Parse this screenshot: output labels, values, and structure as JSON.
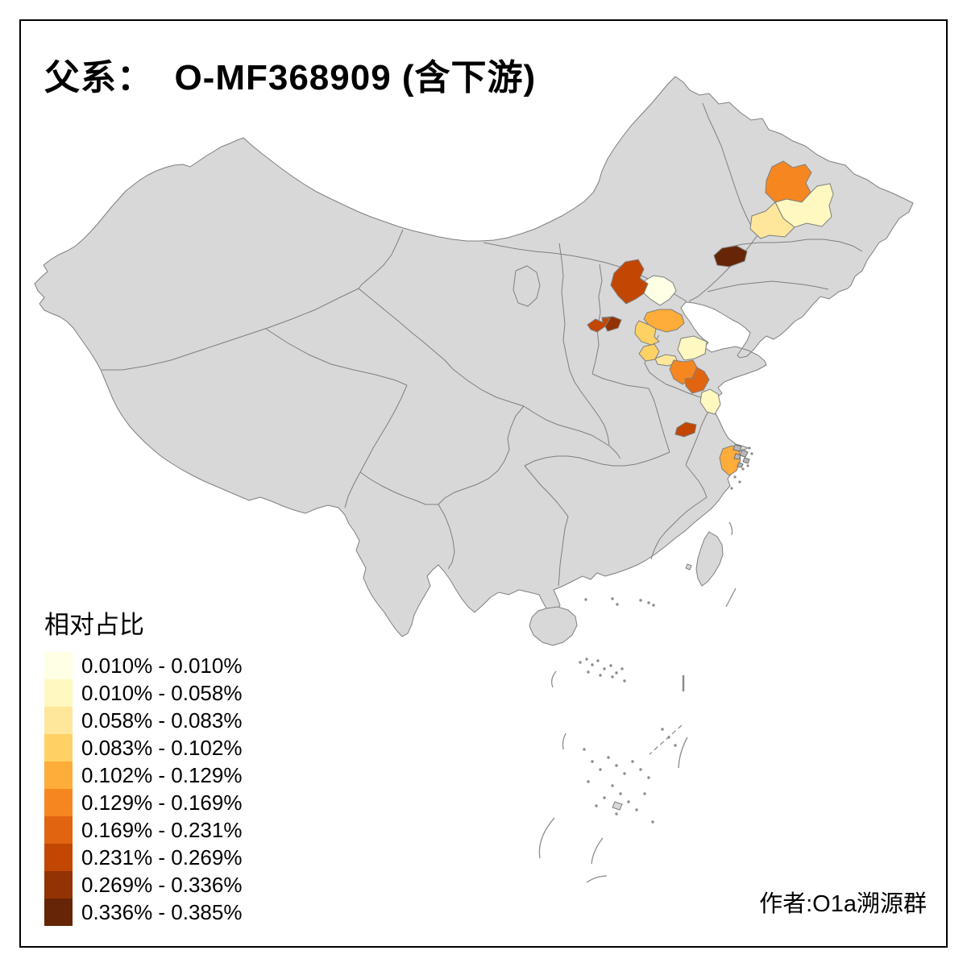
{
  "title": "父系：  O-MF368909 (含下游)",
  "attribution": "作者:O1a溯源群",
  "legend": {
    "title": "相对占比",
    "classes": [
      {
        "label": "0.010% - 0.010%",
        "color": "#FFFFE5"
      },
      {
        "label": "0.010% - 0.058%",
        "color": "#FFF8C0"
      },
      {
        "label": "0.058% - 0.083%",
        "color": "#FEE79B"
      },
      {
        "label": "0.083% - 0.102%",
        "color": "#FED165"
      },
      {
        "label": "0.102% - 0.129%",
        "color": "#FEAC3A"
      },
      {
        "label": "0.129% - 0.169%",
        "color": "#F68720"
      },
      {
        "label": "0.169% - 0.231%",
        "color": "#E16410"
      },
      {
        "label": "0.231% - 0.269%",
        "color": "#C14702"
      },
      {
        "label": "0.269% - 0.336%",
        "color": "#933203"
      },
      {
        "label": "0.336% - 0.385%",
        "color": "#662506"
      }
    ]
  },
  "map": {
    "base_fill": "#D8D8D8",
    "border_color": "#7F7F7F",
    "sea_color": "#FFFFFF",
    "frame_color": "#000000",
    "regions": [
      {
        "id": "northeast-1",
        "class_index": 6
      },
      {
        "id": "northeast-2",
        "class_index": 2
      },
      {
        "id": "northeast-3",
        "class_index": 3
      },
      {
        "id": "northeast-4",
        "class_index": 10
      },
      {
        "id": "north-1",
        "class_index": 8
      },
      {
        "id": "north-2",
        "class_index": 1
      },
      {
        "id": "north-3",
        "class_index": 8
      },
      {
        "id": "north-4",
        "class_index": 9
      },
      {
        "id": "east-1",
        "class_index": 5
      },
      {
        "id": "east-2",
        "class_index": 4
      },
      {
        "id": "east-3",
        "class_index": 4
      },
      {
        "id": "east-4",
        "class_index": 3
      },
      {
        "id": "east-5",
        "class_index": 2
      },
      {
        "id": "east-6",
        "class_index": 6
      },
      {
        "id": "east-7",
        "class_index": 7
      },
      {
        "id": "east-8",
        "class_index": 2
      },
      {
        "id": "east-9",
        "class_index": 8
      },
      {
        "id": "east-10",
        "class_index": 5
      }
    ]
  },
  "chart_data": {
    "type": "heatmap",
    "subtype": "choropleth-china-prefectures",
    "title": "父系：  O-MF368909 (含下游)",
    "legend_title": "相对占比",
    "unit": "%",
    "legend_position": "bottom-left",
    "bins": [
      {
        "min": 0.01,
        "max": 0.01,
        "label": "0.010% - 0.010%",
        "color": "#FFFFE5"
      },
      {
        "min": 0.01,
        "max": 0.058,
        "label": "0.010% - 0.058%",
        "color": "#FFF8C0"
      },
      {
        "min": 0.058,
        "max": 0.083,
        "label": "0.058% - 0.083%",
        "color": "#FEE79B"
      },
      {
        "min": 0.083,
        "max": 0.102,
        "label": "0.083% - 0.102%",
        "color": "#FED165"
      },
      {
        "min": 0.102,
        "max": 0.129,
        "label": "0.102% - 0.129%",
        "color": "#FEAC3A"
      },
      {
        "min": 0.129,
        "max": 0.169,
        "label": "0.129% - 0.169%",
        "color": "#F68720"
      },
      {
        "min": 0.169,
        "max": 0.231,
        "label": "0.169% - 0.231%",
        "color": "#E16410"
      },
      {
        "min": 0.231,
        "max": 0.269,
        "label": "0.231% - 0.269%",
        "color": "#C14702"
      },
      {
        "min": 0.269,
        "max": 0.336,
        "label": "0.269% - 0.336%",
        "color": "#933203"
      },
      {
        "min": 0.336,
        "max": 0.385,
        "label": "0.336% - 0.385%",
        "color": "#662506"
      }
    ],
    "highlighted_regions": [
      {
        "id": "northeast-1",
        "approx_location": "Heilongjiang central",
        "bin_index": 6
      },
      {
        "id": "northeast-2",
        "approx_location": "Heilongjiang southeast",
        "bin_index": 2
      },
      {
        "id": "northeast-3",
        "approx_location": "Jilin north",
        "bin_index": 3
      },
      {
        "id": "northeast-4",
        "approx_location": "Jilin southwest",
        "bin_index": 10
      },
      {
        "id": "north-1",
        "approx_location": "Hebei north",
        "bin_index": 8
      },
      {
        "id": "north-2",
        "approx_location": "Beijing area",
        "bin_index": 1
      },
      {
        "id": "north-3",
        "approx_location": "Shanxi-Hebei border west",
        "bin_index": 8
      },
      {
        "id": "north-4",
        "approx_location": "Shanxi-Hebei border east",
        "bin_index": 9
      },
      {
        "id": "east-1",
        "approx_location": "Hebei southeast",
        "bin_index": 5
      },
      {
        "id": "east-2",
        "approx_location": "Hebei south",
        "bin_index": 4
      },
      {
        "id": "east-3",
        "approx_location": "Shandong northwest",
        "bin_index": 4
      },
      {
        "id": "east-4",
        "approx_location": "Shandong west",
        "bin_index": 3
      },
      {
        "id": "east-5",
        "approx_location": "Shandong central",
        "bin_index": 2
      },
      {
        "id": "east-6",
        "approx_location": "Shandong mid-west",
        "bin_index": 6
      },
      {
        "id": "east-7",
        "approx_location": "Shandong south",
        "bin_index": 7
      },
      {
        "id": "east-8",
        "approx_location": "Jiangsu north coast",
        "bin_index": 2
      },
      {
        "id": "east-9",
        "approx_location": "Jiangsu west / Nanjing area",
        "bin_index": 8
      },
      {
        "id": "east-10",
        "approx_location": "Zhejiang north coast",
        "bin_index": 5
      }
    ],
    "base_region_color": "#D8D8D8",
    "annotations": [
      "作者:O1a溯源群"
    ]
  }
}
